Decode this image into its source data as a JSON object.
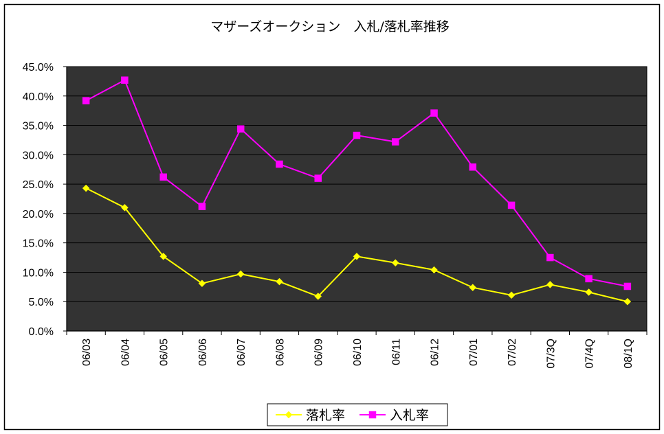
{
  "chart_data": {
    "type": "line",
    "title": "マザーズオークション　入札/落札率推移",
    "xlabel": "",
    "ylabel": "",
    "categories": [
      "06/03",
      "06/04",
      "06/05",
      "06/06",
      "06/07",
      "06/08",
      "06/09",
      "06/10",
      "06/11",
      "06/12",
      "07/01",
      "07/02",
      "07/3Q",
      "07/4Q",
      "08/1Q"
    ],
    "ylim": [
      0,
      45
    ],
    "yticks": [
      0,
      5,
      10,
      15,
      20,
      25,
      30,
      35,
      40,
      45
    ],
    "ytick_labels": [
      "0.0%",
      "5.0%",
      "10.0%",
      "15.0%",
      "20.0%",
      "25.0%",
      "30.0%",
      "35.0%",
      "40.0%",
      "45.0%"
    ],
    "grid": "horizontal",
    "legend_position": "bottom",
    "plot_background": "#333333",
    "series": [
      {
        "name": "落札率",
        "color": "#ffff00",
        "marker": "diamond",
        "values": [
          24.3,
          21.0,
          12.7,
          8.1,
          9.7,
          8.4,
          5.9,
          12.7,
          11.6,
          10.4,
          7.4,
          6.1,
          7.9,
          6.6,
          5.0
        ]
      },
      {
        "name": "入札率",
        "color": "#ff00ff",
        "marker": "square",
        "values": [
          39.2,
          42.7,
          26.2,
          21.2,
          34.4,
          28.4,
          26.0,
          33.3,
          32.2,
          37.1,
          27.9,
          21.4,
          12.5,
          8.9,
          7.6
        ]
      }
    ]
  }
}
